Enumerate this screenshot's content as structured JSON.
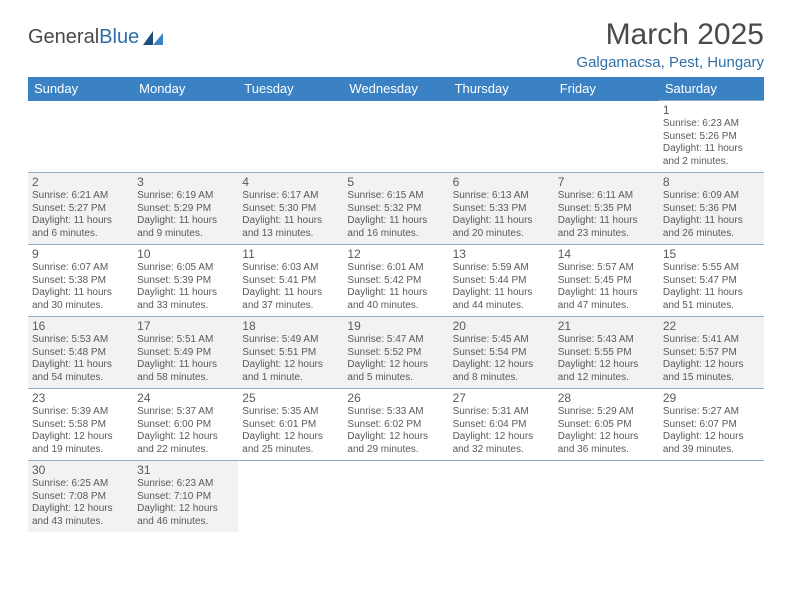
{
  "brand": {
    "part1": "General",
    "part2": "Blue"
  },
  "title": "March 2025",
  "location": "Galgamacsa, Pest, Hungary",
  "colors": {
    "header_bg": "#3b82c4",
    "header_text": "#ffffff",
    "grid_border": "#8faecb",
    "alt_row": "#f2f2f2",
    "text": "#5a5a5a",
    "accent": "#2f6fa7"
  },
  "weekdays": [
    "Sunday",
    "Monday",
    "Tuesday",
    "Wednesday",
    "Thursday",
    "Friday",
    "Saturday"
  ],
  "first_weekday_index": 6,
  "days": [
    {
      "n": 1,
      "sunrise": "6:23 AM",
      "sunset": "5:26 PM",
      "daylight": "11 hours and 2 minutes."
    },
    {
      "n": 2,
      "sunrise": "6:21 AM",
      "sunset": "5:27 PM",
      "daylight": "11 hours and 6 minutes."
    },
    {
      "n": 3,
      "sunrise": "6:19 AM",
      "sunset": "5:29 PM",
      "daylight": "11 hours and 9 minutes."
    },
    {
      "n": 4,
      "sunrise": "6:17 AM",
      "sunset": "5:30 PM",
      "daylight": "11 hours and 13 minutes."
    },
    {
      "n": 5,
      "sunrise": "6:15 AM",
      "sunset": "5:32 PM",
      "daylight": "11 hours and 16 minutes."
    },
    {
      "n": 6,
      "sunrise": "6:13 AM",
      "sunset": "5:33 PM",
      "daylight": "11 hours and 20 minutes."
    },
    {
      "n": 7,
      "sunrise": "6:11 AM",
      "sunset": "5:35 PM",
      "daylight": "11 hours and 23 minutes."
    },
    {
      "n": 8,
      "sunrise": "6:09 AM",
      "sunset": "5:36 PM",
      "daylight": "11 hours and 26 minutes."
    },
    {
      "n": 9,
      "sunrise": "6:07 AM",
      "sunset": "5:38 PM",
      "daylight": "11 hours and 30 minutes."
    },
    {
      "n": 10,
      "sunrise": "6:05 AM",
      "sunset": "5:39 PM",
      "daylight": "11 hours and 33 minutes."
    },
    {
      "n": 11,
      "sunrise": "6:03 AM",
      "sunset": "5:41 PM",
      "daylight": "11 hours and 37 minutes."
    },
    {
      "n": 12,
      "sunrise": "6:01 AM",
      "sunset": "5:42 PM",
      "daylight": "11 hours and 40 minutes."
    },
    {
      "n": 13,
      "sunrise": "5:59 AM",
      "sunset": "5:44 PM",
      "daylight": "11 hours and 44 minutes."
    },
    {
      "n": 14,
      "sunrise": "5:57 AM",
      "sunset": "5:45 PM",
      "daylight": "11 hours and 47 minutes."
    },
    {
      "n": 15,
      "sunrise": "5:55 AM",
      "sunset": "5:47 PM",
      "daylight": "11 hours and 51 minutes."
    },
    {
      "n": 16,
      "sunrise": "5:53 AM",
      "sunset": "5:48 PM",
      "daylight": "11 hours and 54 minutes."
    },
    {
      "n": 17,
      "sunrise": "5:51 AM",
      "sunset": "5:49 PM",
      "daylight": "11 hours and 58 minutes."
    },
    {
      "n": 18,
      "sunrise": "5:49 AM",
      "sunset": "5:51 PM",
      "daylight": "12 hours and 1 minute."
    },
    {
      "n": 19,
      "sunrise": "5:47 AM",
      "sunset": "5:52 PM",
      "daylight": "12 hours and 5 minutes."
    },
    {
      "n": 20,
      "sunrise": "5:45 AM",
      "sunset": "5:54 PM",
      "daylight": "12 hours and 8 minutes."
    },
    {
      "n": 21,
      "sunrise": "5:43 AM",
      "sunset": "5:55 PM",
      "daylight": "12 hours and 12 minutes."
    },
    {
      "n": 22,
      "sunrise": "5:41 AM",
      "sunset": "5:57 PM",
      "daylight": "12 hours and 15 minutes."
    },
    {
      "n": 23,
      "sunrise": "5:39 AM",
      "sunset": "5:58 PM",
      "daylight": "12 hours and 19 minutes."
    },
    {
      "n": 24,
      "sunrise": "5:37 AM",
      "sunset": "6:00 PM",
      "daylight": "12 hours and 22 minutes."
    },
    {
      "n": 25,
      "sunrise": "5:35 AM",
      "sunset": "6:01 PM",
      "daylight": "12 hours and 25 minutes."
    },
    {
      "n": 26,
      "sunrise": "5:33 AM",
      "sunset": "6:02 PM",
      "daylight": "12 hours and 29 minutes."
    },
    {
      "n": 27,
      "sunrise": "5:31 AM",
      "sunset": "6:04 PM",
      "daylight": "12 hours and 32 minutes."
    },
    {
      "n": 28,
      "sunrise": "5:29 AM",
      "sunset": "6:05 PM",
      "daylight": "12 hours and 36 minutes."
    },
    {
      "n": 29,
      "sunrise": "5:27 AM",
      "sunset": "6:07 PM",
      "daylight": "12 hours and 39 minutes."
    },
    {
      "n": 30,
      "sunrise": "6:25 AM",
      "sunset": "7:08 PM",
      "daylight": "12 hours and 43 minutes."
    },
    {
      "n": 31,
      "sunrise": "6:23 AM",
      "sunset": "7:10 PM",
      "daylight": "12 hours and 46 minutes."
    }
  ],
  "labels": {
    "sunrise": "Sunrise:",
    "sunset": "Sunset:",
    "daylight": "Daylight:"
  }
}
